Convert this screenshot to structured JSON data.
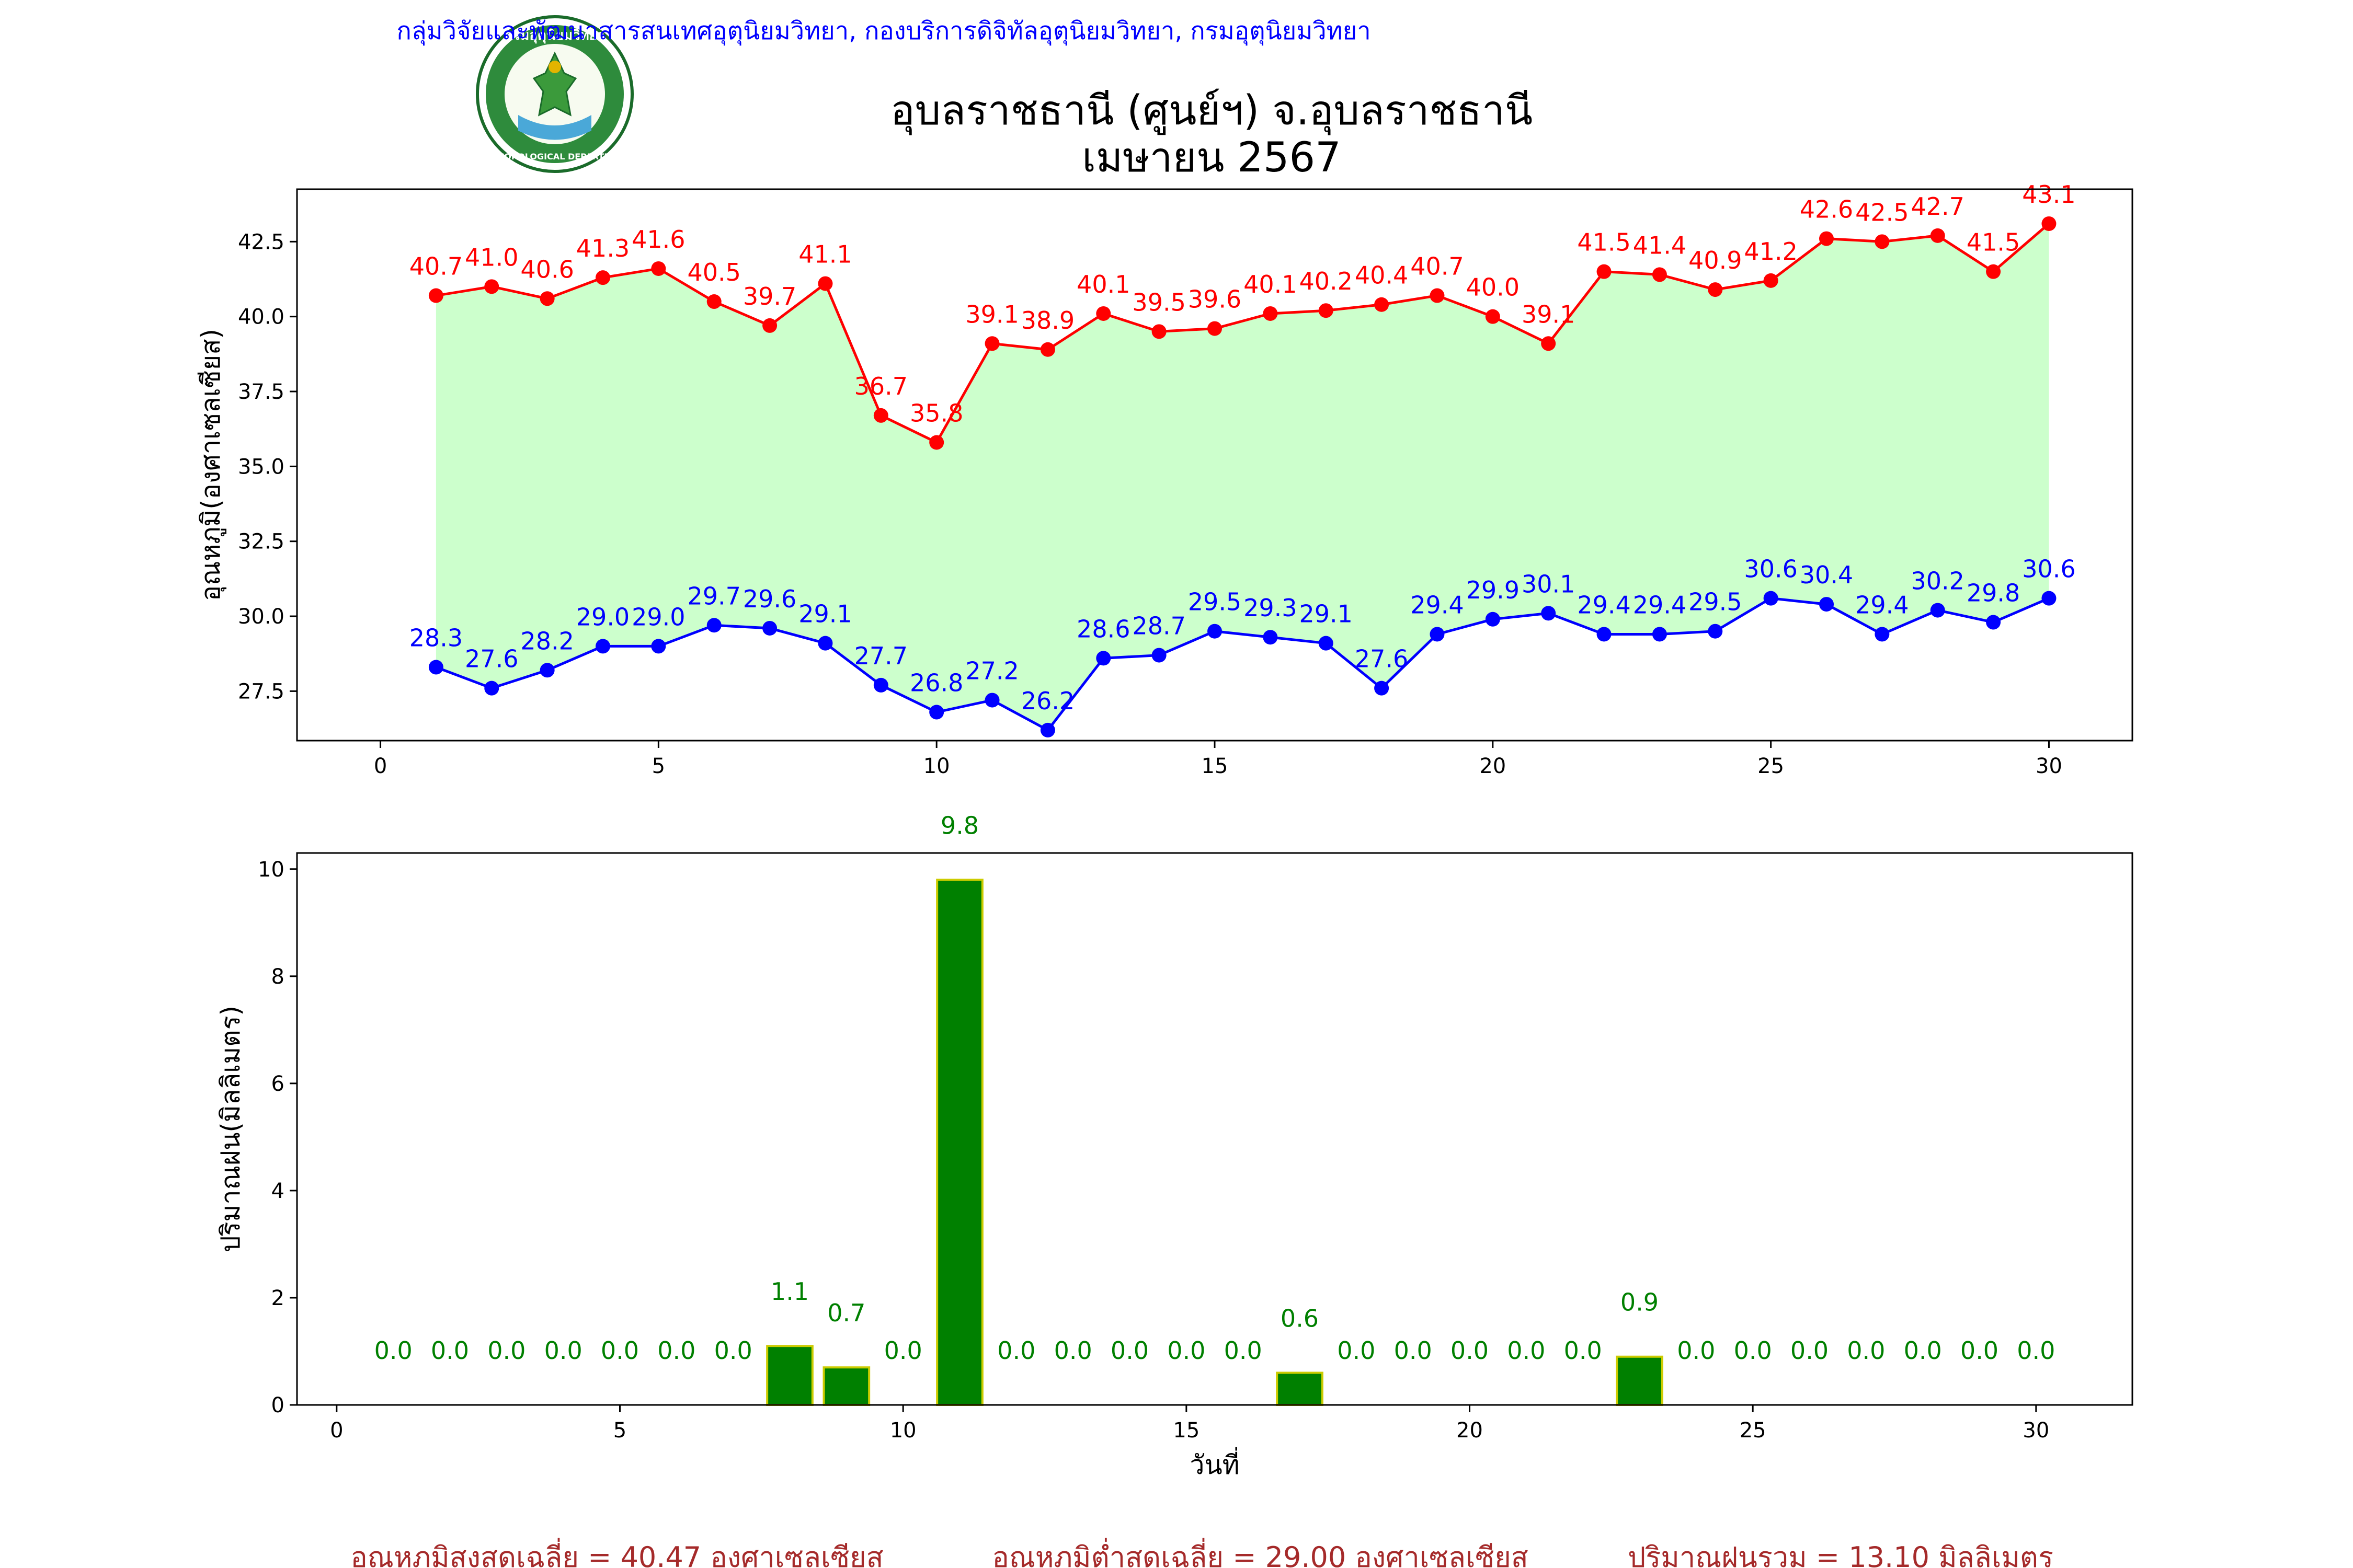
{
  "header": {
    "department_line": "กลุ่มวิจัยและพัฒนาสารสนเทศอุตุนิยมวิทยา, กองบริการดิจิทัลอุตุนิยมวิทยา, กรมอุตุนิยมวิทยา",
    "title_line1": "อุบลราชธานี (ศูนย์ฯ) จ.อุบลราชธานี",
    "title_line2": "เมษายน 2567",
    "logo_top_text": "กรมอุตุนิยมวิทยา",
    "logo_bottom_text": "METEOROLOGICAL DEPARTMENT"
  },
  "colors": {
    "max": "#ff0000",
    "min": "#0000ff",
    "fill": "#ccffcc",
    "rain": "#008000",
    "rain_edge": "#cccc00",
    "dept": "#0000ff",
    "summary": "#a52a2a"
  },
  "chart_data": [
    {
      "type": "line",
      "ylabel": "อุณหภูมิ(องศาเซลเซียส)",
      "x": [
        1,
        2,
        3,
        4,
        5,
        6,
        7,
        8,
        9,
        10,
        11,
        12,
        13,
        14,
        15,
        16,
        17,
        18,
        19,
        20,
        21,
        22,
        23,
        24,
        25,
        26,
        27,
        28,
        29,
        30
      ],
      "series": [
        {
          "key": "max",
          "values": [
            40.7,
            41.0,
            40.6,
            41.3,
            41.6,
            40.5,
            39.7,
            41.1,
            36.7,
            35.8,
            39.1,
            38.9,
            40.1,
            39.5,
            39.6,
            40.1,
            40.2,
            40.4,
            40.7,
            40.0,
            39.1,
            41.5,
            41.4,
            40.9,
            41.2,
            42.6,
            42.5,
            42.7,
            41.5,
            43.1
          ]
        },
        {
          "key": "min",
          "values": [
            28.3,
            27.6,
            28.2,
            29.0,
            29.0,
            29.7,
            29.6,
            29.1,
            27.7,
            26.8,
            27.2,
            26.2,
            28.6,
            28.7,
            29.5,
            29.3,
            29.1,
            27.6,
            29.4,
            29.9,
            30.1,
            29.4,
            29.4,
            29.5,
            30.6,
            30.4,
            29.4,
            30.2,
            29.8,
            30.6
          ]
        }
      ],
      "xlim": [
        -1.5,
        31.5
      ],
      "ylim": [
        25.85,
        44.25
      ],
      "xticks": [
        0,
        5,
        10,
        15,
        20,
        25,
        30
      ],
      "yticks": [
        27.5,
        30.0,
        32.5,
        35.0,
        37.5,
        40.0,
        42.5
      ],
      "grid": false
    },
    {
      "type": "bar",
      "xlabel": "วันที่",
      "ylabel": "ปริมาณฝน(มิลลิเมตร)",
      "x": [
        1,
        2,
        3,
        4,
        5,
        6,
        7,
        8,
        9,
        10,
        11,
        12,
        13,
        14,
        15,
        16,
        17,
        18,
        19,
        20,
        21,
        22,
        23,
        24,
        25,
        26,
        27,
        28,
        29,
        30
      ],
      "values": [
        0.0,
        0.0,
        0.0,
        0.0,
        0.0,
        0.0,
        0.0,
        1.1,
        0.7,
        0.0,
        9.8,
        0.0,
        0.0,
        0.0,
        0.0,
        0.0,
        0.6,
        0.0,
        0.0,
        0.0,
        0.0,
        0.0,
        0.9,
        0.0,
        0.0,
        0.0,
        0.0,
        0.0,
        0.0,
        0.0
      ],
      "xlim": [
        -0.7,
        31.7
      ],
      "ylim": [
        0,
        10.3
      ],
      "xticks": [
        0,
        5,
        10,
        15,
        20,
        25,
        30
      ],
      "yticks": [
        0,
        2,
        4,
        6,
        8,
        10
      ],
      "grid": false
    }
  ],
  "summary": {
    "avg_max": "อุณหภูมิสูงสุดเฉลี่ย = 40.47 องศาเซลเซียส",
    "avg_min": "อุณหภูมิต่ำสุดเฉลี่ย = 29.00 องศาเซลเซียส",
    "total_rain": "ปริมาณฝนรวม = 13.10 มิลลิเมตร"
  }
}
